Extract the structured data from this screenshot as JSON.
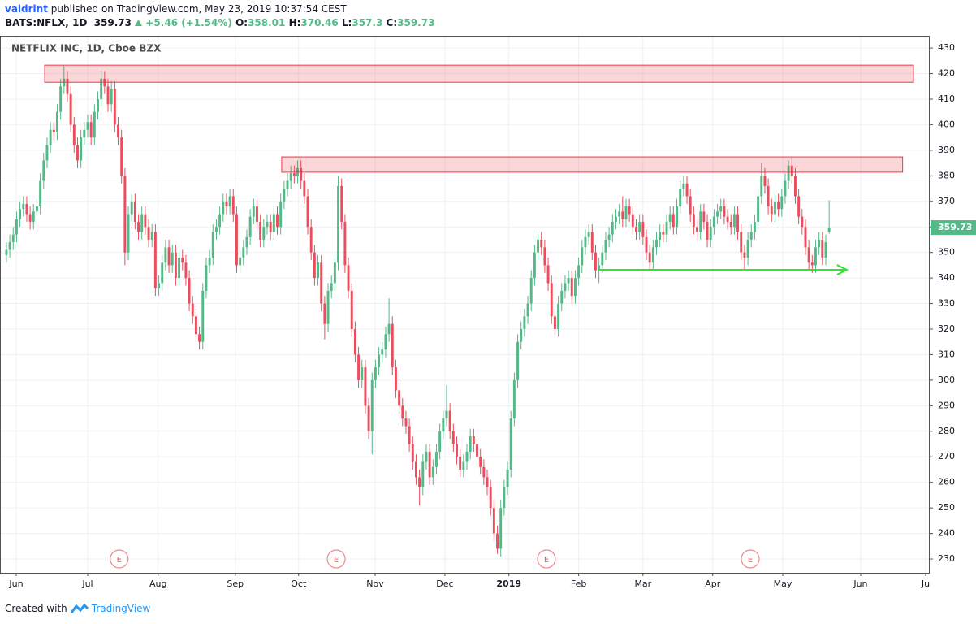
{
  "header": {
    "author": "valdrint",
    "published": "published on TradingView.com, May 23, 2019 10:37:54 CEST",
    "symbol": "BATS:NFLX, 1D",
    "change": "+5.46 (+1.54%)",
    "o": "O:",
    "h": "H:",
    "l": "L:",
    "c": "C:"
  },
  "footer": {
    "created": "Created with",
    "brand": "TradingView"
  },
  "chart_data": {
    "type": "candlestick",
    "title": "NETFLIX INC, 1D, Cboe BZX",
    "up_color": "#53b987",
    "down_color": "#eb4d5c",
    "grid": true,
    "ylim": [
      224.6,
      434.8
    ],
    "yticks": [
      230,
      240,
      250,
      260,
      270,
      280,
      290,
      300,
      310,
      320,
      330,
      340,
      350,
      360,
      370,
      380,
      390,
      400,
      410,
      420,
      430
    ],
    "xlim": [
      -1.9,
      272.7
    ],
    "xticks": [
      {
        "value": 2.9,
        "label": "Jun"
      },
      {
        "value": 24,
        "label": "Jul"
      },
      {
        "value": 44.8,
        "label": "Aug"
      },
      {
        "value": 67.6,
        "label": "Sep"
      },
      {
        "value": 86.3,
        "label": "Oct"
      },
      {
        "value": 108.9,
        "label": "Nov"
      },
      {
        "value": 129.5,
        "label": "Dec"
      },
      {
        "value": 148.4,
        "label": "2019"
      },
      {
        "value": 169,
        "label": "Feb"
      },
      {
        "value": 188,
        "label": "Mar"
      },
      {
        "value": 208.6,
        "label": "Apr"
      },
      {
        "value": 229.3,
        "label": "May"
      },
      {
        "value": 252.3,
        "label": "Jun"
      },
      {
        "value": 271.5,
        "label": "Ju"
      }
    ],
    "open": [
      349,
      351,
      354,
      357,
      363,
      367,
      369,
      365,
      362,
      366,
      368,
      378,
      386,
      392,
      398,
      397,
      405,
      415,
      418,
      412,
      400,
      392,
      386,
      395,
      398,
      401,
      395,
      405,
      410,
      418,
      415,
      408,
      414,
      400,
      395,
      380,
      350,
      365,
      370,
      362,
      358,
      365,
      360,
      355,
      358,
      336,
      338,
      346,
      352,
      345,
      350,
      340,
      348,
      346,
      340,
      330,
      325,
      318,
      315,
      335,
      345,
      348,
      358,
      360,
      365,
      370,
      368,
      372,
      365,
      345,
      348,
      352,
      356,
      364,
      368,
      362,
      355,
      360,
      362,
      358,
      365,
      360,
      370,
      375,
      378,
      381,
      380,
      383,
      378,
      372,
      360,
      350,
      340,
      346,
      330,
      322,
      335,
      338,
      346,
      376,
      362,
      345,
      335,
      320,
      310,
      300,
      305,
      290,
      280,
      300,
      305,
      310,
      312,
      318,
      322,
      305,
      296,
      290,
      285,
      282,
      275,
      268,
      262,
      258,
      268,
      272,
      262,
      266,
      272,
      280,
      285,
      288,
      280,
      275,
      270,
      265,
      268,
      272,
      278,
      275,
      270,
      266,
      262,
      258,
      250,
      240,
      234,
      250,
      258,
      265,
      285,
      300,
      315,
      320,
      325,
      330,
      340,
      350,
      355,
      352,
      345,
      338,
      325,
      320,
      330,
      335,
      338,
      340,
      333,
      340,
      345,
      352,
      356,
      358,
      350,
      343,
      345,
      350,
      355,
      357,
      362,
      364,
      366,
      363,
      368,
      365,
      360,
      358,
      362,
      356,
      350,
      346,
      352,
      355,
      358,
      357,
      362,
      365,
      360,
      368,
      375,
      377,
      372,
      365,
      360,
      358,
      366,
      362,
      355,
      360,
      364,
      366,
      368,
      364,
      362,
      360,
      365,
      358,
      350,
      348,
      355,
      358,
      362,
      372,
      380,
      376,
      368,
      365,
      370,
      367,
      372,
      378,
      384,
      380,
      372,
      364,
      360,
      352,
      346,
      345,
      352,
      355,
      348,
      358.01
    ],
    "high": [
      354,
      357,
      360,
      366,
      370,
      372,
      372,
      368,
      369,
      371,
      381,
      389,
      395,
      401,
      401,
      408,
      418,
      423,
      421,
      415,
      403,
      395,
      398,
      401,
      404,
      404,
      408,
      413,
      421,
      421,
      418,
      417,
      417,
      403,
      398,
      383,
      368,
      373,
      373,
      365,
      368,
      368,
      363,
      361,
      361,
      341,
      349,
      355,
      355,
      353,
      353,
      351,
      351,
      349,
      343,
      333,
      328,
      321,
      338,
      348,
      351,
      361,
      363,
      368,
      373,
      373,
      375,
      375,
      368,
      351,
      355,
      359,
      367,
      371,
      371,
      365,
      363,
      365,
      365,
      368,
      368,
      373,
      378,
      381,
      384,
      384,
      386,
      386,
      381,
      375,
      363,
      353,
      349,
      349,
      333,
      338,
      341,
      349,
      380,
      379,
      365,
      348,
      338,
      323,
      313,
      308,
      308,
      293,
      303,
      308,
      313,
      315,
      321,
      332,
      325,
      308,
      299,
      293,
      288,
      285,
      278,
      271,
      265,
      271,
      275,
      275,
      269,
      275,
      283,
      288,
      298,
      291,
      283,
      278,
      273,
      271,
      275,
      281,
      281,
      278,
      273,
      269,
      265,
      261,
      253,
      243,
      253,
      261,
      268,
      288,
      303,
      318,
      323,
      328,
      333,
      343,
      353,
      358,
      358,
      355,
      348,
      341,
      328,
      333,
      338,
      341,
      343,
      343,
      343,
      348,
      355,
      359,
      361,
      361,
      353,
      348,
      353,
      358,
      360,
      365,
      367,
      369,
      372,
      371,
      371,
      368,
      363,
      365,
      365,
      359,
      353,
      355,
      358,
      361,
      361,
      365,
      368,
      368,
      371,
      378,
      380,
      380,
      375,
      368,
      363,
      369,
      369,
      365,
      363,
      367,
      369,
      371,
      371,
      367,
      365,
      368,
      368,
      361,
      353,
      358,
      361,
      365,
      375,
      385,
      383,
      379,
      371,
      373,
      373,
      375,
      381,
      386,
      387,
      383,
      375,
      367,
      363,
      355,
      349,
      355,
      358,
      358,
      357,
      370.46
    ],
    "low": [
      346,
      348,
      351,
      354,
      360,
      364,
      362,
      359,
      359,
      363,
      365,
      375,
      383,
      389,
      394,
      394,
      402,
      412,
      409,
      397,
      389,
      383,
      383,
      392,
      395,
      392,
      392,
      402,
      407,
      412,
      405,
      405,
      397,
      392,
      377,
      345,
      347,
      362,
      359,
      355,
      355,
      357,
      352,
      352,
      333,
      333,
      335,
      343,
      342,
      342,
      337,
      337,
      343,
      337,
      327,
      322,
      315,
      312,
      312,
      332,
      342,
      345,
      355,
      357,
      362,
      365,
      365,
      362,
      342,
      342,
      345,
      349,
      353,
      361,
      359,
      352,
      352,
      357,
      355,
      355,
      357,
      357,
      367,
      372,
      375,
      377,
      377,
      375,
      369,
      357,
      347,
      337,
      337,
      327,
      316,
      319,
      332,
      335,
      343,
      359,
      342,
      332,
      317,
      307,
      297,
      297,
      287,
      277,
      271,
      297,
      302,
      307,
      309,
      315,
      302,
      293,
      287,
      282,
      279,
      272,
      265,
      259,
      251,
      255,
      265,
      259,
      259,
      263,
      269,
      277,
      282,
      277,
      272,
      267,
      262,
      262,
      265,
      269,
      272,
      267,
      263,
      259,
      255,
      247,
      237,
      232,
      231,
      247,
      255,
      262,
      282,
      297,
      312,
      317,
      322,
      327,
      337,
      347,
      349,
      342,
      335,
      322,
      317,
      317,
      327,
      332,
      335,
      330,
      330,
      337,
      342,
      349,
      353,
      347,
      340,
      338,
      342,
      347,
      352,
      354,
      359,
      361,
      360,
      360,
      362,
      357,
      355,
      355,
      353,
      347,
      343,
      343,
      349,
      352,
      354,
      354,
      359,
      357,
      357,
      365,
      372,
      369,
      362,
      357,
      355,
      355,
      359,
      352,
      352,
      357,
      361,
      363,
      361,
      359,
      357,
      357,
      355,
      347,
      343,
      345,
      352,
      355,
      359,
      369,
      373,
      365,
      362,
      362,
      364,
      364,
      369,
      375,
      377,
      369,
      361,
      357,
      349,
      343,
      342,
      342,
      349,
      345,
      345,
      357.3
    ],
    "close": [
      351,
      354,
      357,
      363,
      367,
      369,
      365,
      362,
      366,
      368,
      378,
      386,
      392,
      398,
      397,
      405,
      415,
      418,
      412,
      400,
      392,
      386,
      395,
      398,
      401,
      395,
      405,
      410,
      418,
      415,
      408,
      414,
      400,
      395,
      380,
      350,
      365,
      370,
      362,
      358,
      365,
      360,
      355,
      358,
      336,
      338,
      346,
      352,
      345,
      350,
      340,
      348,
      346,
      340,
      330,
      325,
      318,
      315,
      335,
      345,
      348,
      358,
      360,
      365,
      370,
      368,
      372,
      365,
      345,
      348,
      352,
      356,
      364,
      368,
      362,
      355,
      360,
      362,
      358,
      365,
      360,
      370,
      375,
      378,
      381,
      380,
      383,
      378,
      372,
      360,
      350,
      340,
      346,
      330,
      322,
      335,
      338,
      346,
      376,
      362,
      345,
      335,
      320,
      310,
      300,
      305,
      290,
      280,
      300,
      305,
      310,
      312,
      318,
      322,
      305,
      296,
      290,
      285,
      282,
      275,
      268,
      262,
      258,
      268,
      272,
      262,
      266,
      272,
      280,
      285,
      288,
      280,
      275,
      270,
      265,
      268,
      272,
      278,
      275,
      270,
      266,
      262,
      258,
      250,
      240,
      234,
      250,
      258,
      265,
      285,
      300,
      315,
      320,
      325,
      330,
      340,
      350,
      355,
      352,
      345,
      338,
      325,
      320,
      330,
      335,
      338,
      340,
      333,
      340,
      345,
      352,
      356,
      358,
      350,
      343,
      345,
      350,
      355,
      357,
      362,
      364,
      366,
      363,
      368,
      365,
      360,
      358,
      362,
      356,
      350,
      346,
      352,
      355,
      358,
      357,
      362,
      365,
      360,
      368,
      375,
      377,
      372,
      365,
      360,
      358,
      366,
      362,
      355,
      360,
      364,
      366,
      368,
      364,
      362,
      360,
      365,
      358,
      350,
      348,
      355,
      358,
      362,
      372,
      380,
      376,
      368,
      365,
      370,
      367,
      372,
      378,
      384,
      380,
      372,
      364,
      360,
      352,
      346,
      345,
      352,
      355,
      348,
      354,
      359.73
    ],
    "zones": [
      {
        "x0": 11.3,
        "x1": 267.9,
        "y0": 416.6,
        "y1": 423.3,
        "color": "#f23645"
      },
      {
        "x0": 81.3,
        "x1": 264.7,
        "y0": 381.4,
        "y1": 387.4,
        "color": "#f23645"
      }
    ],
    "arrow": {
      "x0": 174.8,
      "x1": 248.2,
      "y": 343.2,
      "color": "#2ee62e"
    },
    "events": [
      {
        "x": 33.3,
        "label": "E"
      },
      {
        "x": 97.4,
        "label": "E"
      },
      {
        "x": 159.5,
        "label": "E"
      },
      {
        "x": 219.7,
        "label": "E"
      }
    ]
  }
}
